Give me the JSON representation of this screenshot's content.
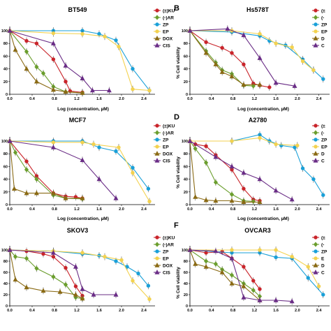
{
  "series_names": [
    "(±)KU",
    "(-)AR",
    "ZP",
    "EP",
    "DOX",
    "CIS"
  ],
  "colors": {
    "(±)KU": "#c9252b",
    "(-)AR": "#6b9e2e",
    "ZP": "#1aa0d8",
    "EP": "#f3d250",
    "DOX": "#8a6a14",
    "CIS": "#6a2d86"
  },
  "markers": {
    "(±)KU": "circle",
    "(-)AR": "diamond",
    "ZP": "circle",
    "EP": "circle",
    "DOX": "triangle",
    "CIS": "triangle"
  },
  "chart_data": [
    {
      "type": "line",
      "letter": "",
      "title": "BT549",
      "xlabel": "Log (concentration, µM)",
      "ylabel": "",
      "xlim": [
        0,
        2.6
      ],
      "ylim": [
        0,
        100
      ],
      "xticks": [
        "0.0",
        "0.4",
        "0.8",
        "1.2",
        "1.6",
        "2.0",
        "2.4"
      ],
      "yticks": [
        "0",
        "20",
        "40",
        "60",
        "80",
        "100"
      ],
      "legend": [
        "(±)KU",
        "(-)AR",
        "ZP",
        "EP",
        "DOX",
        "CIS"
      ],
      "series": [
        {
          "name": "(±)KU",
          "x": [
            0,
            0.3,
            0.48,
            0.78,
            1.0,
            1.08,
            1.3
          ],
          "y": [
            100,
            84,
            80,
            55,
            20,
            5,
            3
          ]
        },
        {
          "name": "(-)AR",
          "x": [
            0,
            0.3,
            0.48,
            0.6,
            0.78,
            1.0,
            1.3
          ],
          "y": [
            100,
            67,
            43,
            33,
            12,
            4,
            2
          ]
        },
        {
          "name": "ZP",
          "x": [
            0,
            0.78,
            1.3,
            1.6,
            1.9,
            2.2,
            2.5
          ],
          "y": [
            100,
            100,
            100,
            95,
            85,
            40,
            6
          ]
        },
        {
          "name": "EP",
          "x": [
            0,
            0.78,
            1.3,
            1.7,
            1.95,
            2.2,
            2.5
          ],
          "y": [
            100,
            96,
            95,
            91,
            75,
            8,
            6
          ]
        },
        {
          "name": "DOX",
          "x": [
            0,
            0.1,
            0.3,
            0.48,
            0.78,
            1.0,
            1.3
          ],
          "y": [
            100,
            70,
            40,
            20,
            7,
            4,
            2
          ]
        },
        {
          "name": "CIS",
          "x": [
            0,
            0.78,
            1.0,
            1.3,
            1.48,
            1.78
          ],
          "y": [
            100,
            80,
            45,
            25,
            6,
            6
          ]
        }
      ]
    },
    {
      "type": "line",
      "letter": "B",
      "title": "Hs578T",
      "xlabel": "Log (concentration, µM)",
      "ylabel": "% Cell viability",
      "xlim": [
        0,
        2.6
      ],
      "ylim": [
        0,
        100
      ],
      "xticks": [
        "0.0",
        "0.4",
        "0.8",
        "1.2",
        "1.6",
        "2.0",
        "2.4"
      ],
      "yticks": [
        "0",
        "20",
        "40",
        "60",
        "80",
        "100"
      ],
      "legend": [
        "(±",
        "(-",
        "ZP",
        "EP",
        "D",
        "C"
      ],
      "series": [
        {
          "name": "(±)KU",
          "x": [
            0,
            0.3,
            0.6,
            0.78,
            1.0,
            1.18,
            1.3,
            1.48
          ],
          "y": [
            100,
            82,
            73,
            65,
            47,
            17,
            14,
            11
          ]
        },
        {
          "name": "(-)AR",
          "x": [
            0,
            0.3,
            0.48,
            0.6,
            0.78,
            1.0,
            1.18
          ],
          "y": [
            100,
            68,
            50,
            38,
            32,
            14,
            13
          ]
        },
        {
          "name": "ZP",
          "x": [
            0,
            0.78,
            1.3,
            1.48,
            1.78,
            2.1,
            2.3,
            2.48
          ],
          "y": [
            100,
            98,
            92,
            84,
            77,
            55,
            38,
            24
          ]
        },
        {
          "name": "EP",
          "x": [
            0,
            0.78,
            1.3,
            1.6,
            1.9,
            2.1,
            2.3
          ],
          "y": [
            100,
            100,
            95,
            80,
            74,
            52,
            38
          ]
        },
        {
          "name": "DOX",
          "x": [
            0,
            0.3,
            0.48,
            0.6,
            0.78,
            1.0,
            1.3
          ],
          "y": [
            100,
            65,
            47,
            35,
            28,
            15,
            15
          ]
        },
        {
          "name": "CIS",
          "x": [
            0,
            0.7,
            1.0,
            1.3,
            1.6,
            1.95
          ],
          "y": [
            100,
            103,
            93,
            57,
            18,
            13
          ]
        }
      ]
    },
    {
      "type": "line",
      "letter": "",
      "title": "MCF7",
      "xlabel": "Log (concentration, µM)",
      "ylabel": "",
      "xlim": [
        0,
        2.6
      ],
      "ylim": [
        0,
        100
      ],
      "xticks": [
        "0.0",
        "0.4",
        "0.8",
        "1.2",
        "1.6",
        "2.0",
        "2.4"
      ],
      "yticks": [
        "0",
        "20",
        "40",
        "60",
        "80",
        "100"
      ],
      "legend": [
        "(±)KU",
        "(-)AR",
        "ZP",
        "EP",
        "DOX",
        "CIS"
      ],
      "series": [
        {
          "name": "(±)KU",
          "x": [
            0,
            0.3,
            0.48,
            0.78,
            1.0,
            1.18,
            1.3
          ],
          "y": [
            100,
            68,
            45,
            18,
            13,
            12,
            10
          ]
        },
        {
          "name": "(-)AR",
          "x": [
            0,
            0.1,
            0.3,
            0.48,
            0.78,
            1.0,
            1.3
          ],
          "y": [
            100,
            82,
            55,
            40,
            15,
            10,
            9
          ]
        },
        {
          "name": "ZP",
          "x": [
            0,
            0.78,
            1.3,
            1.6,
            1.9,
            2.2,
            2.48
          ],
          "y": [
            100,
            100,
            100,
            90,
            84,
            58,
            25
          ]
        },
        {
          "name": "EP",
          "x": [
            0,
            0.78,
            1.3,
            1.5,
            1.95,
            2.2,
            2.5
          ],
          "y": [
            100,
            98,
            98,
            95,
            90,
            50,
            5
          ]
        },
        {
          "name": "DOX",
          "x": [
            0,
            0.08,
            0.3,
            0.48,
            0.78,
            1.0,
            1.3
          ],
          "y": [
            100,
            25,
            18,
            18,
            18,
            10,
            10
          ]
        },
        {
          "name": "CIS",
          "x": [
            0,
            0.78,
            1.3,
            1.6,
            1.9
          ],
          "y": [
            100,
            90,
            70,
            40,
            10
          ]
        }
      ]
    },
    {
      "type": "line",
      "letter": "D",
      "title": "A2780",
      "xlabel": "Log (concentration, µM)",
      "ylabel": "% Cell viability",
      "xlim": [
        0,
        2.6
      ],
      "ylim": [
        0,
        100
      ],
      "xticks": [
        "0.0",
        "0.4",
        "0.8",
        "1.2",
        "1.6",
        "2.0",
        "2.4"
      ],
      "yticks": [
        "0",
        "20",
        "40",
        "60",
        "80",
        "100"
      ],
      "legend": [
        "(±",
        "(-",
        "ZP",
        "EP",
        "D",
        "C"
      ],
      "series": [
        {
          "name": "(±)KU",
          "x": [
            0,
            0.1,
            0.3,
            0.48,
            0.78,
            1.0,
            1.18,
            1.3
          ],
          "y": [
            100,
            95,
            92,
            78,
            55,
            25,
            8,
            6
          ]
        },
        {
          "name": "(-)AR",
          "x": [
            0,
            0.1,
            0.3,
            0.48,
            0.78,
            1.0,
            1.18
          ],
          "y": [
            100,
            88,
            66,
            35,
            16,
            6,
            5
          ]
        },
        {
          "name": "ZP",
          "x": [
            0,
            0.78,
            1.3,
            1.48,
            1.7,
            1.95,
            2.1,
            2.3,
            2.48
          ],
          "y": [
            100,
            100,
            110,
            100,
            93,
            90,
            57,
            40,
            15
          ]
        },
        {
          "name": "EP",
          "x": [
            0,
            0.78,
            1.3,
            1.6,
            2.0
          ],
          "y": [
            100,
            100,
            105,
            95,
            93
          ]
        },
        {
          "name": "DOX",
          "x": [
            0,
            0.1,
            0.3,
            0.48,
            0.78,
            1.0,
            1.3
          ],
          "y": [
            100,
            12,
            7,
            6,
            6,
            4,
            4
          ]
        },
        {
          "name": "CIS",
          "x": [
            0,
            0.48,
            0.78,
            1.0,
            1.3,
            1.6,
            1.9
          ],
          "y": [
            100,
            75,
            60,
            50,
            40,
            22,
            8
          ]
        }
      ]
    },
    {
      "type": "line",
      "letter": "",
      "title": "SKOV3",
      "xlabel": "Log (concentration, µM)",
      "ylabel": "",
      "xlim": [
        0,
        2.6
      ],
      "ylim": [
        0,
        100
      ],
      "xticks": [
        "0.0",
        "0.4",
        "0.8",
        "1.2",
        "1.6",
        "2.0",
        "2.4"
      ],
      "yticks": [
        "0",
        "20",
        "40",
        "60",
        "80",
        "100"
      ],
      "legend": [
        "(±)KU",
        "(-)AR",
        "ZP",
        "EP",
        "DOX",
        "CIS"
      ],
      "series": [
        {
          "name": "(±)KU",
          "x": [
            0,
            0.3,
            0.6,
            0.78,
            1.0,
            1.18,
            1.3
          ],
          "y": [
            100,
            98,
            93,
            88,
            68,
            35,
            18
          ]
        },
        {
          "name": "(-)AR",
          "x": [
            0,
            0.1,
            0.3,
            0.48,
            0.78,
            1.0,
            1.18,
            1.3
          ],
          "y": [
            100,
            88,
            85,
            67,
            52,
            38,
            15,
            13
          ]
        },
        {
          "name": "ZP",
          "x": [
            0,
            0.78,
            1.3,
            1.6,
            1.9,
            2.1,
            2.3,
            2.48
          ],
          "y": [
            100,
            98,
            93,
            90,
            80,
            70,
            58,
            36
          ]
        },
        {
          "name": "EP",
          "x": [
            0,
            0.78,
            1.3,
            1.7,
            2.0,
            2.2,
            2.5
          ],
          "y": [
            100,
            98,
            95,
            88,
            82,
            45,
            12
          ]
        },
        {
          "name": "DOX",
          "x": [
            0,
            0.1,
            0.3,
            0.6,
            0.9,
            1.18,
            1.3
          ],
          "y": [
            100,
            47,
            33,
            27,
            25,
            20,
            13
          ]
        },
        {
          "name": "CIS",
          "x": [
            0,
            0.78,
            1.18,
            1.3,
            1.5,
            1.9
          ],
          "y": [
            100,
            95,
            70,
            30,
            20,
            20
          ]
        }
      ]
    },
    {
      "type": "line",
      "letter": "F",
      "title": "OVCAR3",
      "xlabel": "Log (concentration, µM)",
      "ylabel": "% Cell viability",
      "xlim": [
        0,
        2.6
      ],
      "ylim": [
        0,
        100
      ],
      "xticks": [
        "0.0",
        "0.4",
        "0.8",
        "1.2",
        "1.6",
        "2.0",
        "2.4"
      ],
      "yticks": [
        "0",
        "20",
        "40",
        "60",
        "80",
        "100"
      ],
      "legend": [
        "(±",
        "(-",
        "ZP",
        "E",
        "D",
        "C"
      ],
      "series": [
        {
          "name": "(±)KU",
          "x": [
            0,
            0.3,
            0.6,
            0.78,
            1.0,
            1.18,
            1.3
          ],
          "y": [
            100,
            95,
            97,
            85,
            70,
            45,
            30
          ]
        },
        {
          "name": "(-)AR",
          "x": [
            0,
            0.3,
            0.48,
            0.6,
            0.78,
            1.0,
            1.18,
            1.3
          ],
          "y": [
            100,
            80,
            75,
            65,
            55,
            40,
            28,
            17
          ]
        },
        {
          "name": "ZP",
          "x": [
            0,
            0.78,
            1.3,
            1.6,
            1.9,
            2.2,
            2.48
          ],
          "y": [
            100,
            95,
            95,
            87,
            85,
            50,
            20
          ]
        },
        {
          "name": "EP",
          "x": [
            0,
            0.78,
            1.3,
            1.6,
            1.9,
            2.2,
            2.4
          ],
          "y": [
            100,
            100,
            100,
            100,
            88,
            70,
            35
          ]
        },
        {
          "name": "DOX",
          "x": [
            0,
            0.1,
            0.3,
            0.6,
            0.78,
            1.0,
            1.3
          ],
          "y": [
            100,
            75,
            70,
            60,
            40,
            35,
            10
          ]
        },
        {
          "name": "CIS",
          "x": [
            0,
            0.48,
            0.78,
            1.0,
            1.3,
            1.6,
            1.9
          ],
          "y": [
            100,
            98,
            85,
            15,
            10,
            10,
            8
          ]
        }
      ]
    }
  ]
}
